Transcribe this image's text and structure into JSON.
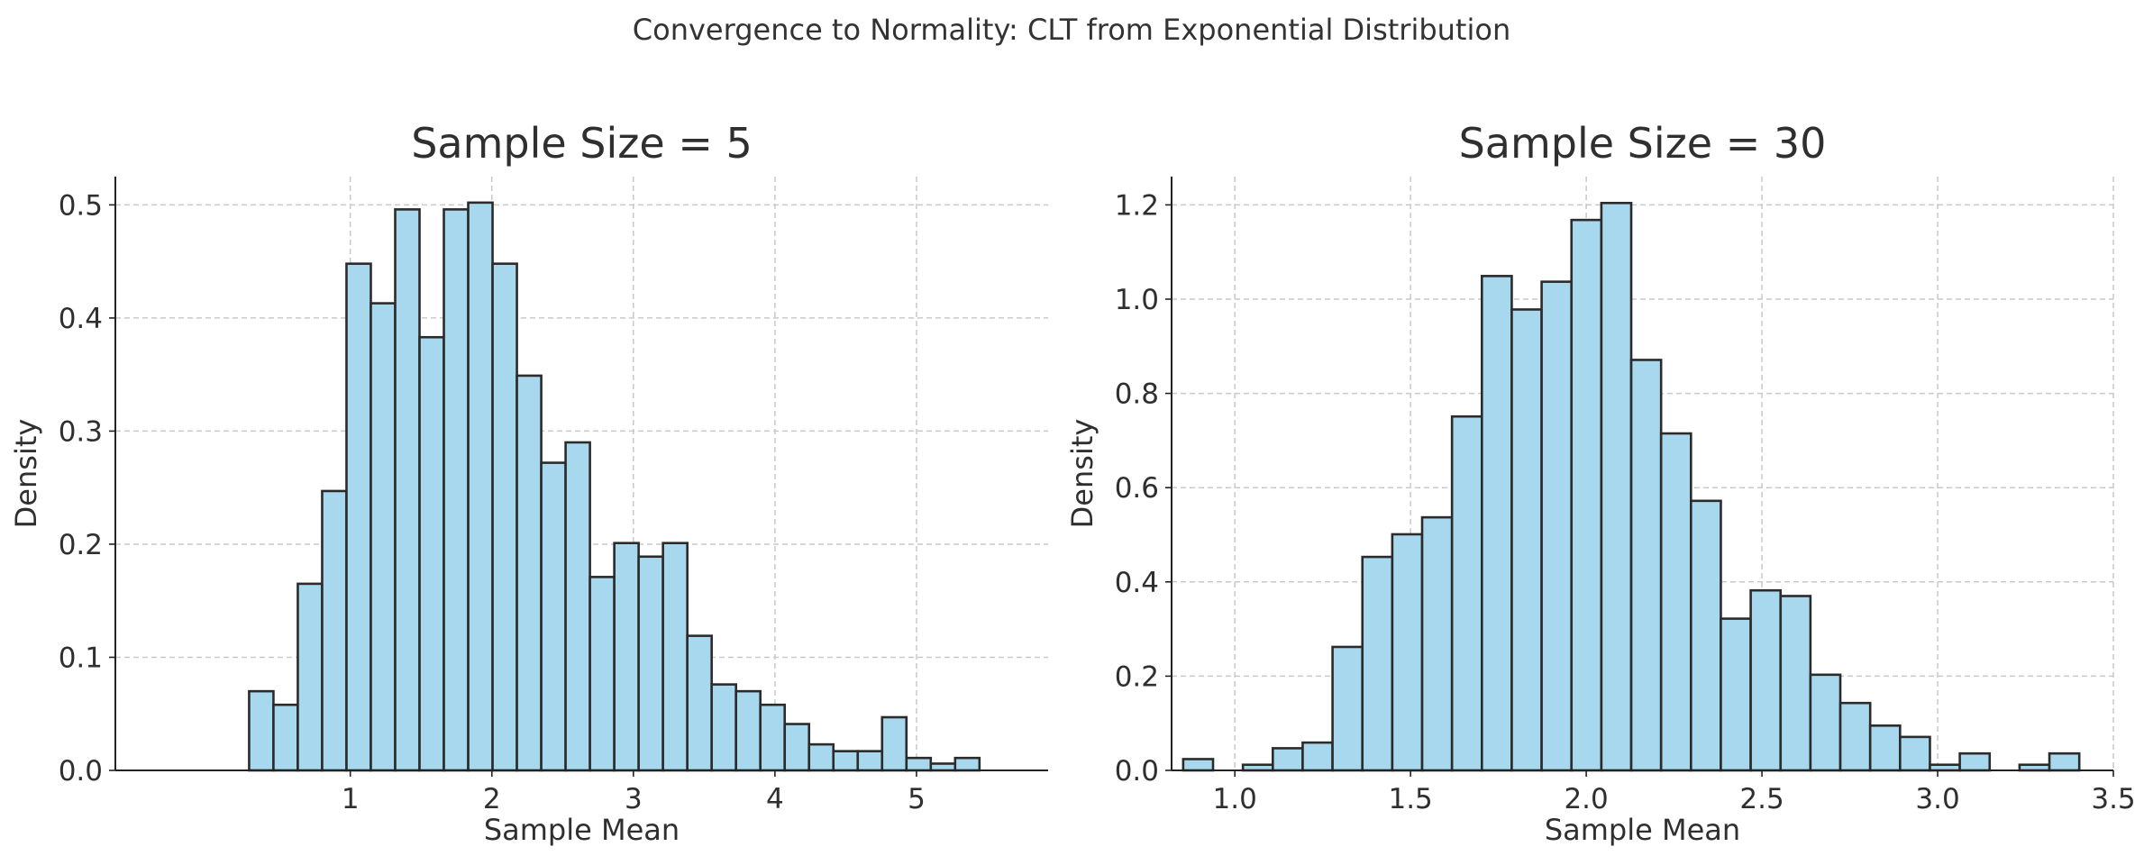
{
  "figure": {
    "title": "Convergence to Normality: CLT from Exponential Distribution",
    "bar_color": "#a8d8ed",
    "edge_color": "#2b2b2b"
  },
  "chart_data": [
    {
      "type": "bar",
      "title": "Sample Size = 5",
      "xlabel": "Sample Mean",
      "ylabel": "Density",
      "xlim": [
        -0.66,
        5.93
      ],
      "ylim": [
        0,
        0.525
      ],
      "grid": true,
      "xticks": [
        1,
        2,
        3,
        4,
        5
      ],
      "xtick_labels": [
        "1",
        "2",
        "3",
        "4",
        "5"
      ],
      "yticks": [
        0,
        0.1,
        0.2,
        0.3,
        0.4,
        0.5
      ],
      "ytick_labels": [
        "0.0",
        "0.1",
        "0.2",
        "0.3",
        "0.4",
        "0.5"
      ],
      "bin_edges": [
        0.285,
        0.457,
        0.629,
        0.801,
        0.973,
        1.145,
        1.317,
        1.489,
        1.661,
        1.833,
        2.005,
        2.177,
        2.349,
        2.521,
        2.693,
        2.865,
        3.037,
        3.209,
        3.381,
        3.553,
        3.725,
        3.897,
        4.069,
        4.241,
        4.413,
        4.585,
        4.757,
        4.929,
        5.101,
        5.273,
        5.445
      ],
      "values": [
        0.07,
        0.058,
        0.165,
        0.247,
        0.448,
        0.413,
        0.496,
        0.383,
        0.496,
        0.502,
        0.448,
        0.349,
        0.272,
        0.29,
        0.171,
        0.201,
        0.189,
        0.201,
        0.119,
        0.076,
        0.07,
        0.058,
        0.041,
        0.023,
        0.017,
        0.017,
        0.047,
        0.011,
        0.006,
        0.011
      ]
    },
    {
      "type": "bar",
      "title": "Sample Size = 30",
      "xlabel": "Sample Mean",
      "ylabel": "Density",
      "xlim": [
        0.82,
        3.5
      ],
      "ylim": [
        0,
        1.26
      ],
      "grid": true,
      "xticks": [
        1.0,
        1.5,
        2.0,
        2.5,
        3.0,
        3.5
      ],
      "xtick_labels": [
        "1.0",
        "1.5",
        "2.0",
        "2.5",
        "3.0",
        "3.5"
      ],
      "yticks": [
        0,
        0.2,
        0.4,
        0.6,
        0.8,
        1.0,
        1.2
      ],
      "ytick_labels": [
        "0.0",
        "0.2",
        "0.4",
        "0.6",
        "0.8",
        "1.0",
        "1.2"
      ],
      "bin_edges": [
        0.853,
        0.938,
        1.023,
        1.108,
        1.193,
        1.278,
        1.363,
        1.448,
        1.533,
        1.618,
        1.703,
        1.788,
        1.873,
        1.958,
        2.043,
        2.128,
        2.213,
        2.298,
        2.383,
        2.468,
        2.553,
        2.638,
        2.723,
        2.808,
        2.893,
        2.978,
        3.063,
        3.148,
        3.233,
        3.318,
        3.403
      ],
      "values": [
        0.024,
        0.0,
        0.012,
        0.047,
        0.059,
        0.262,
        0.453,
        0.501,
        0.537,
        0.751,
        1.049,
        0.978,
        1.037,
        1.168,
        1.204,
        0.871,
        0.715,
        0.572,
        0.322,
        0.382,
        0.37,
        0.203,
        0.143,
        0.095,
        0.071,
        0.012,
        0.036,
        0.0,
        0.012,
        0.036
      ]
    }
  ]
}
